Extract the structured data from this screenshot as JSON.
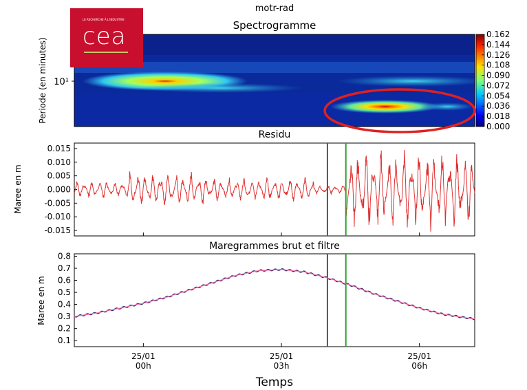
{
  "figure": {
    "suptitle": "motr-rad",
    "xlabel": "Temps",
    "xticks": [
      "25/01\n00h",
      "25/01\n03h",
      "25/01\n06h"
    ]
  },
  "logo": {
    "text": "cea",
    "tagline": "LE RECHERCHE À L'INDUSTRIE",
    "color": "#c8102e"
  },
  "highlight": {
    "color": "#e02020",
    "shape": "ellipse"
  },
  "chart_data": [
    {
      "type": "heatmap",
      "title": "Spectrogramme",
      "ylabel": "Periode (en minutes)",
      "yscale": "log",
      "ytick_label": "10¹",
      "colorbar": {
        "ticks": [
          "0.000",
          "0.018",
          "0.036",
          "0.054",
          "0.072",
          "0.090",
          "0.108",
          "0.126",
          "0.144",
          "0.162"
        ],
        "range": [
          0.0,
          0.162
        ],
        "colormap": "jet"
      },
      "hotspots": [
        {
          "time_h": 1.3,
          "period_min": 10.5,
          "value": 0.11
        },
        {
          "time_h": 5.6,
          "period_min": 5.0,
          "value": 0.16
        }
      ]
    },
    {
      "type": "line",
      "title": "Residu",
      "ylabel": "Maree en m",
      "yticks": [
        "0.015",
        "0.010",
        "0.005",
        "0.000",
        "-0.005",
        "-0.010",
        "-0.015"
      ],
      "ylim": [
        -0.017,
        0.017
      ],
      "series": [
        {
          "color": "#e03030",
          "amplitude_by_segment": [
            {
              "from_h": -1.5,
              "to_h": -0.3,
              "amp": 0.003
            },
            {
              "from_h": -0.3,
              "to_h": 1.3,
              "amp": 0.006
            },
            {
              "from_h": 1.3,
              "to_h": 3.7,
              "amp": 0.004
            },
            {
              "from_h": 3.7,
              "to_h": 4.4,
              "amp": 0.0015
            },
            {
              "from_h": 4.4,
              "to_h": 7.2,
              "amp": 0.013
            }
          ]
        }
      ],
      "vlines": [
        {
          "x_h": 4.0,
          "color": "#555555"
        },
        {
          "x_h": 4.4,
          "color": "#2ca02c"
        }
      ]
    },
    {
      "type": "line",
      "title": "Maregrammes brut et filtre",
      "ylabel": "Maree en m",
      "yticks": [
        "0.8",
        "0.7",
        "0.6",
        "0.5",
        "0.4",
        "0.3",
        "0.2",
        "0.1"
      ],
      "ylim": [
        0.05,
        0.82
      ],
      "series": [
        {
          "name": "",
          "color": "#2a2a7a",
          "x_h": [
            -1.5,
            -1.0,
            -0.5,
            0.0,
            0.5,
            1.0,
            1.5,
            2.0,
            2.5,
            3.0,
            3.5,
            4.0,
            4.5,
            5.0,
            5.5,
            6.0,
            6.5,
            7.0,
            7.2
          ],
          "values": [
            0.3,
            0.33,
            0.37,
            0.41,
            0.46,
            0.52,
            0.58,
            0.64,
            0.68,
            0.69,
            0.67,
            0.62,
            0.56,
            0.49,
            0.43,
            0.37,
            0.32,
            0.29,
            0.28
          ]
        },
        {
          "name": "",
          "color": "#ff6fa0",
          "x_h": [
            -1.5,
            -1.0,
            -0.5,
            0.0,
            0.5,
            1.0,
            1.5,
            2.0,
            2.5,
            3.0,
            3.5,
            4.0,
            4.5,
            5.0,
            5.5,
            6.0,
            6.5,
            7.0,
            7.2
          ],
          "values": [
            0.3,
            0.33,
            0.37,
            0.41,
            0.46,
            0.52,
            0.58,
            0.64,
            0.68,
            0.69,
            0.67,
            0.62,
            0.56,
            0.49,
            0.43,
            0.37,
            0.32,
            0.29,
            0.28
          ]
        }
      ],
      "vlines": [
        {
          "x_h": 4.0,
          "color": "#555555"
        },
        {
          "x_h": 4.4,
          "color": "#2ca02c"
        }
      ]
    }
  ]
}
